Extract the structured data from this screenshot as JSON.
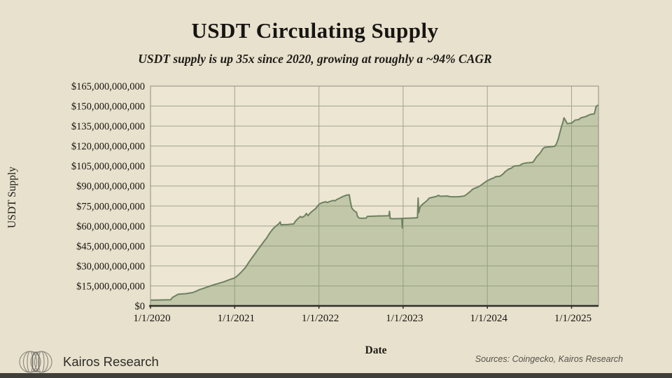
{
  "slide": {
    "title": "USDT Circulating Supply",
    "subtitle": "USDT supply is up 35x since 2020, growing at roughly a ~94% CAGR",
    "sources": "Sources: Coingecko, Kairos Research",
    "footer_brand": "Kairos Research"
  },
  "chart_data": {
    "type": "area",
    "title": "USDT Circulating Supply",
    "xlabel": "Date",
    "ylabel": "USDT Supply",
    "unit": "USD billions",
    "grid": "on",
    "legend": "none",
    "xlim": [
      2020.0,
      2025.32
    ],
    "ylim": [
      0,
      165
    ],
    "x_ticks": {
      "years": [
        2020,
        2021,
        2022,
        2023,
        2024,
        2025
      ],
      "labels": [
        "1/1/2020",
        "1/1/2021",
        "1/1/2022",
        "1/1/2023",
        "1/1/2024",
        "1/1/2025"
      ]
    },
    "y_ticks": {
      "values": [
        0,
        15,
        30,
        45,
        60,
        75,
        90,
        105,
        120,
        135,
        150,
        165
      ],
      "labels": [
        "$0",
        "$15,000,000,000",
        "$30,000,000,000",
        "$45,000,000,000",
        "$60,000,000,000",
        "$75,000,000,000",
        "$90,000,000,000",
        "$105,000,000,000",
        "$120,000,000,000",
        "$135,000,000,000",
        "$150,000,000,000",
        "$165,000,000,000"
      ]
    },
    "colors": {
      "page_bg": "#e8e1cd",
      "plot_bg": "#ece6d2",
      "grid": "#a3a294",
      "area_fill": "rgba(130,152,104,0.40)",
      "line": "#6d8161",
      "axis": "#2f2e29",
      "text": "#161410"
    },
    "series": [
      {
        "name": "USDT Supply",
        "points": [
          [
            2020.0,
            4.3
          ],
          [
            2020.1,
            4.4
          ],
          [
            2020.17,
            4.5
          ],
          [
            2020.24,
            4.6
          ],
          [
            2020.26,
            6.3
          ],
          [
            2020.33,
            8.8
          ],
          [
            2020.38,
            9.0
          ],
          [
            2020.42,
            9.2
          ],
          [
            2020.5,
            10.0
          ],
          [
            2020.54,
            11.0
          ],
          [
            2020.58,
            12.2
          ],
          [
            2020.63,
            13.2
          ],
          [
            2020.67,
            14.1
          ],
          [
            2020.71,
            15.0
          ],
          [
            2020.75,
            15.8
          ],
          [
            2020.79,
            16.5
          ],
          [
            2020.83,
            17.3
          ],
          [
            2020.88,
            18.3
          ],
          [
            2020.92,
            19.3
          ],
          [
            2020.96,
            20.2
          ],
          [
            2021.0,
            21.0
          ],
          [
            2021.04,
            23.0
          ],
          [
            2021.08,
            25.5
          ],
          [
            2021.13,
            29.0
          ],
          [
            2021.17,
            33.0
          ],
          [
            2021.21,
            36.5
          ],
          [
            2021.25,
            40.0
          ],
          [
            2021.29,
            43.5
          ],
          [
            2021.33,
            47.0
          ],
          [
            2021.38,
            51.0
          ],
          [
            2021.42,
            55.0
          ],
          [
            2021.46,
            58.2
          ],
          [
            2021.5,
            60.5
          ],
          [
            2021.52,
            61.5
          ],
          [
            2021.54,
            63.0
          ],
          [
            2021.55,
            60.8
          ],
          [
            2021.58,
            61.0
          ],
          [
            2021.63,
            61.1
          ],
          [
            2021.67,
            61.3
          ],
          [
            2021.7,
            61.5
          ],
          [
            2021.72,
            63.5
          ],
          [
            2021.75,
            65.5
          ],
          [
            2021.78,
            67.1
          ],
          [
            2021.8,
            66.4
          ],
          [
            2021.83,
            67.6
          ],
          [
            2021.85,
            69.4
          ],
          [
            2021.87,
            67.8
          ],
          [
            2021.9,
            70.0
          ],
          [
            2021.93,
            71.5
          ],
          [
            2021.96,
            73.0
          ],
          [
            2022.0,
            76.2
          ],
          [
            2022.03,
            77.3
          ],
          [
            2022.06,
            77.8
          ],
          [
            2022.08,
            78.2
          ],
          [
            2022.1,
            77.6
          ],
          [
            2022.13,
            78.4
          ],
          [
            2022.17,
            79.2
          ],
          [
            2022.19,
            78.8
          ],
          [
            2022.21,
            79.8
          ],
          [
            2022.25,
            81.0
          ],
          [
            2022.29,
            82.3
          ],
          [
            2022.33,
            83.2
          ],
          [
            2022.36,
            83.4
          ],
          [
            2022.375,
            78.0
          ],
          [
            2022.39,
            73.5
          ],
          [
            2022.41,
            72.0
          ],
          [
            2022.43,
            70.8
          ],
          [
            2022.445,
            70.5
          ],
          [
            2022.46,
            67.0
          ],
          [
            2022.48,
            65.9
          ],
          [
            2022.52,
            65.8
          ],
          [
            2022.56,
            65.9
          ],
          [
            2022.575,
            67.2
          ],
          [
            2022.63,
            67.3
          ],
          [
            2022.67,
            67.4
          ],
          [
            2022.71,
            67.5
          ],
          [
            2022.75,
            67.5
          ],
          [
            2022.79,
            67.6
          ],
          [
            2022.83,
            67.7
          ],
          [
            2022.838,
            71.0
          ],
          [
            2022.846,
            65.6
          ],
          [
            2022.88,
            65.4
          ],
          [
            2022.92,
            65.5
          ],
          [
            2022.96,
            65.6
          ],
          [
            2022.985,
            65.7
          ],
          [
            2022.99,
            58.5
          ],
          [
            2022.995,
            65.7
          ],
          [
            2023.04,
            65.8
          ],
          [
            2023.08,
            65.9
          ],
          [
            2023.13,
            66.0
          ],
          [
            2023.17,
            66.2
          ],
          [
            2023.178,
            81.0
          ],
          [
            2023.185,
            70.0
          ],
          [
            2023.2,
            74.0
          ],
          [
            2023.22,
            75.7
          ],
          [
            2023.25,
            77.3
          ],
          [
            2023.28,
            78.8
          ],
          [
            2023.31,
            80.9
          ],
          [
            2023.35,
            81.5
          ],
          [
            2023.4,
            82.3
          ],
          [
            2023.42,
            83.0
          ],
          [
            2023.44,
            82.3
          ],
          [
            2023.48,
            82.4
          ],
          [
            2023.52,
            82.5
          ],
          [
            2023.56,
            82.0
          ],
          [
            2023.6,
            81.9
          ],
          [
            2023.65,
            82.0
          ],
          [
            2023.69,
            82.2
          ],
          [
            2023.73,
            82.6
          ],
          [
            2023.75,
            83.5
          ],
          [
            2023.79,
            85.5
          ],
          [
            2023.83,
            87.8
          ],
          [
            2023.88,
            89.0
          ],
          [
            2023.92,
            90.4
          ],
          [
            2023.96,
            92.3
          ],
          [
            2024.0,
            94.0
          ],
          [
            2024.04,
            95.2
          ],
          [
            2024.08,
            96.2
          ],
          [
            2024.1,
            97.0
          ],
          [
            2024.15,
            97.3
          ],
          [
            2024.19,
            99.2
          ],
          [
            2024.21,
            100.8
          ],
          [
            2024.23,
            101.5
          ],
          [
            2024.25,
            102.7
          ],
          [
            2024.27,
            103.0
          ],
          [
            2024.29,
            103.6
          ],
          [
            2024.31,
            104.8
          ],
          [
            2024.33,
            105.1
          ],
          [
            2024.38,
            105.3
          ],
          [
            2024.42,
            106.8
          ],
          [
            2024.46,
            107.3
          ],
          [
            2024.5,
            107.5
          ],
          [
            2024.54,
            107.8
          ],
          [
            2024.56,
            109.5
          ],
          [
            2024.58,
            111.5
          ],
          [
            2024.6,
            113.0
          ],
          [
            2024.62,
            114.2
          ],
          [
            2024.64,
            116.0
          ],
          [
            2024.66,
            118.0
          ],
          [
            2024.68,
            119.0
          ],
          [
            2024.72,
            119.3
          ],
          [
            2024.76,
            119.5
          ],
          [
            2024.8,
            119.8
          ],
          [
            2024.82,
            121.5
          ],
          [
            2024.84,
            125.0
          ],
          [
            2024.86,
            129.8
          ],
          [
            2024.88,
            134.5
          ],
          [
            2024.9,
            138.5
          ],
          [
            2024.91,
            141.2
          ],
          [
            2024.93,
            139.0
          ],
          [
            2024.95,
            136.8
          ],
          [
            2024.97,
            137.0
          ],
          [
            2025.0,
            137.3
          ],
          [
            2025.02,
            138.2
          ],
          [
            2025.04,
            139.4
          ],
          [
            2025.07,
            139.7
          ],
          [
            2025.09,
            140.0
          ],
          [
            2025.11,
            141.2
          ],
          [
            2025.14,
            141.6
          ],
          [
            2025.17,
            142.2
          ],
          [
            2025.19,
            142.8
          ],
          [
            2025.21,
            143.4
          ],
          [
            2025.23,
            143.8
          ],
          [
            2025.25,
            144.0
          ],
          [
            2025.27,
            144.2
          ],
          [
            2025.28,
            146.5
          ],
          [
            2025.29,
            149.5
          ],
          [
            2025.3,
            150.2
          ],
          [
            2025.32,
            150.8
          ]
        ]
      }
    ]
  }
}
